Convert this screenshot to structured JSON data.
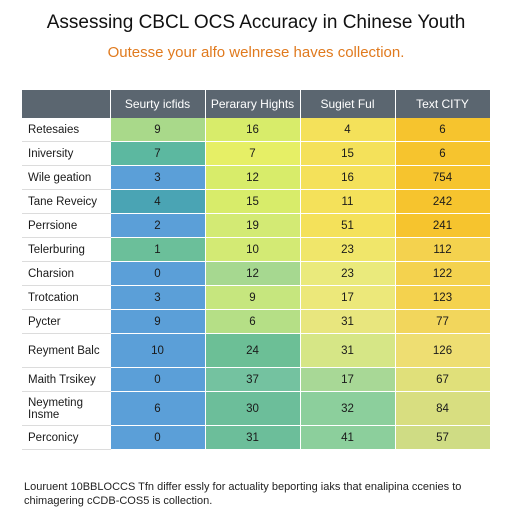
{
  "title": "Assessing CBCL OCS Accuracy in Chinese Youth",
  "subtitle": "Outesse your alfo welnrese haves collection.",
  "footer": {
    "line1": "Louruent 10BBLOCCS Tfn differ essly for actuality beporting iaks that enalipina ccenies to",
    "line2": "chimagering cCDB-COS5 is collection."
  },
  "chart_data": {
    "type": "table",
    "title": "Assessing CBCL OCS Accuracy in Chinese Youth",
    "columns": [
      "Seurty icfids",
      "Perarary Hights",
      "Sugiet Ful",
      "Text CITY"
    ],
    "rows": [
      {
        "label": "Retesaies",
        "values": [
          9,
          16,
          4,
          6
        ],
        "colors": [
          "#a9d98a",
          "#d8ec6a",
          "#f4e15a",
          "#f6c42e"
        ]
      },
      {
        "label": "Iniversity",
        "values": [
          7,
          7,
          15,
          6
        ],
        "colors": [
          "#5cb8a0",
          "#e6ef66",
          "#f4e15a",
          "#f6c42e"
        ]
      },
      {
        "label": "Wile geation",
        "values": [
          3,
          12,
          16,
          754
        ],
        "colors": [
          "#5b9fd8",
          "#d8ec6a",
          "#f4e15a",
          "#f6c42e"
        ]
      },
      {
        "label": "Tane Reveicy",
        "values": [
          4,
          15,
          11,
          242
        ],
        "colors": [
          "#4aa4b4",
          "#d8ec6a",
          "#f4e15a",
          "#f6c42e"
        ]
      },
      {
        "label": "Perrsione",
        "values": [
          2,
          19,
          51,
          241
        ],
        "colors": [
          "#5b9fd8",
          "#d3ea74",
          "#f4e15a",
          "#f6c42e"
        ]
      },
      {
        "label": "Telerburing",
        "values": [
          1,
          10,
          23,
          112
        ],
        "colors": [
          "#6bbf9a",
          "#d3ea74",
          "#f0e66a",
          "#f4d24e"
        ]
      },
      {
        "label": "Charsion",
        "values": [
          0,
          12,
          23,
          122
        ],
        "colors": [
          "#5b9fd8",
          "#a6d890",
          "#eaea7c",
          "#f4d24e"
        ]
      },
      {
        "label": "Trotcation",
        "values": [
          3,
          9,
          17,
          123
        ],
        "colors": [
          "#5b9fd8",
          "#c6e67e",
          "#ece87a",
          "#f4d24e"
        ]
      },
      {
        "label": "Pycter",
        "values": [
          9,
          6,
          31,
          77
        ],
        "colors": [
          "#5b9fd8",
          "#b5df86",
          "#e8e67e",
          "#f2d65c"
        ]
      },
      {
        "label": "Reyment Balc",
        "values": [
          10,
          24,
          31,
          126
        ],
        "colors": [
          "#5b9fd8",
          "#6cbf96",
          "#d6e686",
          "#eede72"
        ]
      },
      {
        "label": "Maith Trsikey",
        "values": [
          0,
          37,
          17,
          67
        ],
        "colors": [
          "#5b9fd8",
          "#74c2a0",
          "#a8d896",
          "#e0e07a"
        ]
      },
      {
        "label": "Neymeting Insme",
        "values": [
          6,
          30,
          32,
          84
        ],
        "colors": [
          "#5b9fd8",
          "#6cbe9a",
          "#8ccf9c",
          "#d8de80"
        ]
      },
      {
        "label": "Perconicy",
        "values": [
          0,
          31,
          41,
          57
        ],
        "colors": [
          "#5b9fd8",
          "#6cbe9a",
          "#8ccf9c",
          "#cfdc84"
        ]
      }
    ],
    "tall_rows": [
      9,
      11
    ]
  }
}
